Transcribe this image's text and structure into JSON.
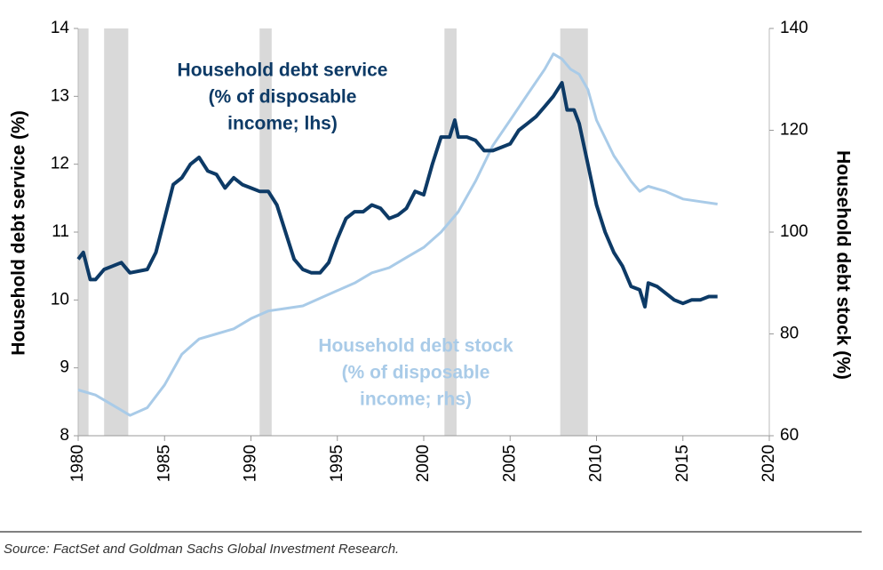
{
  "chart_data": {
    "type": "line",
    "ylabel": "Household debt service (%)",
    "y2label": "Household debt stock (%)",
    "source": "Source: FactSet and Goldman Sachs Global Investment Research.",
    "xlim": [
      1980,
      2020
    ],
    "xticks": [
      1980,
      1985,
      1990,
      1995,
      2000,
      2005,
      2010,
      2015,
      2020
    ],
    "ylim": [
      8,
      14
    ],
    "yticks": [
      8,
      9,
      10,
      11,
      12,
      13,
      14
    ],
    "y2lim": [
      60,
      140
    ],
    "y2ticks": [
      60,
      80,
      100,
      120,
      140
    ],
    "grid": false,
    "recessions": [
      [
        1980.0,
        1980.6
      ],
      [
        1981.5,
        1982.9
      ],
      [
        1990.5,
        1991.2
      ],
      [
        2001.2,
        2001.9
      ],
      [
        2007.9,
        2009.5
      ]
    ],
    "recession_color": "#d9d9d9",
    "annotations": [
      {
        "lines": [
          "Household debt service",
          "(% of disposable",
          "income; lhs)"
        ],
        "color": "#0d3a66"
      },
      {
        "lines": [
          "Household debt stock",
          "(% of disposable",
          "income; rhs)"
        ],
        "color": "#a9cbe8"
      }
    ],
    "series": [
      {
        "name": "Household debt service",
        "color": "#0d3a66",
        "axis": "y",
        "x": [
          1980,
          1980.3,
          1980.7,
          1981,
          1981.5,
          1982,
          1982.5,
          1983,
          1984,
          1984.5,
          1985,
          1985.5,
          1986,
          1986.5,
          1987,
          1987.5,
          1988,
          1988.5,
          1989,
          1989.5,
          1990,
          1990.5,
          1991,
          1991.5,
          1992,
          1992.5,
          1993,
          1993.5,
          1994,
          1994.5,
          1995,
          1995.5,
          1996,
          1996.5,
          1997,
          1997.5,
          1998,
          1998.5,
          1999,
          1999.5,
          2000,
          2000.5,
          2001,
          2001.5,
          2001.8,
          2002,
          2002.5,
          2003,
          2003.5,
          2004,
          2004.5,
          2005,
          2005.5,
          2006,
          2006.5,
          2007,
          2007.5,
          2008,
          2008.3,
          2008.7,
          2009,
          2009.5,
          2010,
          2010.5,
          2011,
          2011.5,
          2012,
          2012.5,
          2012.8,
          2013,
          2013.5,
          2014,
          2014.5,
          2015,
          2015.5,
          2016,
          2016.5,
          2017
        ],
        "values": [
          10.6,
          10.7,
          10.3,
          10.3,
          10.45,
          10.5,
          10.55,
          10.4,
          10.45,
          10.7,
          11.2,
          11.7,
          11.8,
          12.0,
          12.1,
          11.9,
          11.85,
          11.65,
          11.8,
          11.7,
          11.65,
          11.6,
          11.6,
          11.4,
          11.0,
          10.6,
          10.45,
          10.4,
          10.4,
          10.55,
          10.9,
          11.2,
          11.3,
          11.3,
          11.4,
          11.35,
          11.2,
          11.25,
          11.35,
          11.6,
          11.55,
          12.0,
          12.4,
          12.4,
          12.65,
          12.4,
          12.4,
          12.35,
          12.2,
          12.2,
          12.25,
          12.3,
          12.5,
          12.6,
          12.7,
          12.85,
          13.0,
          13.2,
          12.8,
          12.8,
          12.6,
          12.0,
          11.4,
          11.0,
          10.7,
          10.5,
          10.2,
          10.15,
          9.9,
          10.25,
          10.2,
          10.1,
          10.0,
          9.95,
          10.0,
          10.0,
          10.05,
          10.05
        ]
      },
      {
        "name": "Household debt stock",
        "color": "#a9cbe8",
        "axis": "y2",
        "x": [
          1980,
          1981,
          1982,
          1983,
          1984,
          1985,
          1986,
          1987,
          1988,
          1989,
          1990,
          1991,
          1992,
          1993,
          1994,
          1995,
          1996,
          1997,
          1998,
          1999,
          2000,
          2001,
          2002,
          2003,
          2004,
          2005,
          2006,
          2007,
          2007.5,
          2008,
          2008.5,
          2009,
          2009.5,
          2010,
          2011,
          2012,
          2012.5,
          2013,
          2014,
          2015,
          2016,
          2017
        ],
        "values": [
          69,
          68,
          66,
          64,
          65.5,
          70,
          76,
          79,
          80,
          81,
          83,
          84.5,
          85,
          85.5,
          87,
          88.5,
          90,
          92,
          93,
          95,
          97,
          100,
          104,
          110,
          117,
          122,
          127,
          132,
          135,
          134,
          132,
          131,
          128,
          122,
          115,
          110,
          108,
          109,
          108,
          106.5,
          106,
          105.5
        ]
      }
    ]
  }
}
